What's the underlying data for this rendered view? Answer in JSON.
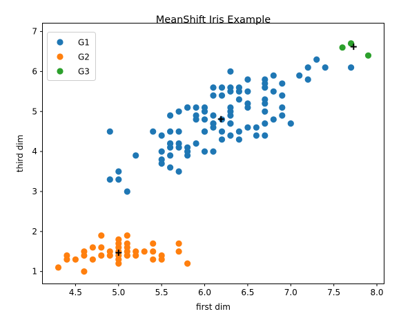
{
  "chart_data": {
    "type": "scatter",
    "title": "MeanShift Iris Example",
    "xlabel": "first dim",
    "ylabel": "third dim",
    "xlim": [
      4.12,
      8.08
    ],
    "ylim": [
      0.7,
      7.2
    ],
    "xticks": [
      4.5,
      5.0,
      5.5,
      6.0,
      6.5,
      7.0,
      7.5,
      8.0
    ],
    "xtick_labels": [
      "4.5",
      "5.0",
      "5.5",
      "6.0",
      "6.5",
      "7.0",
      "7.5",
      "8.0"
    ],
    "yticks": [
      1,
      2,
      3,
      4,
      5,
      6,
      7
    ],
    "ytick_labels": [
      "1",
      "2",
      "3",
      "4",
      "5",
      "6",
      "7"
    ],
    "grid": false,
    "legend_position": "top-left",
    "series": [
      {
        "name": "G1",
        "color": "#1f77b4",
        "points": [
          [
            7.0,
            4.7
          ],
          [
            6.4,
            4.5
          ],
          [
            6.9,
            4.9
          ],
          [
            5.5,
            4.0
          ],
          [
            6.5,
            4.6
          ],
          [
            5.7,
            4.5
          ],
          [
            6.3,
            4.7
          ],
          [
            4.9,
            3.3
          ],
          [
            6.6,
            4.6
          ],
          [
            5.2,
            3.9
          ],
          [
            5.0,
            3.5
          ],
          [
            5.9,
            4.2
          ],
          [
            6.0,
            4.0
          ],
          [
            6.1,
            4.7
          ],
          [
            5.6,
            3.6
          ],
          [
            6.7,
            4.4
          ],
          [
            5.6,
            4.5
          ],
          [
            5.8,
            4.1
          ],
          [
            6.2,
            4.5
          ],
          [
            5.6,
            3.9
          ],
          [
            5.9,
            4.8
          ],
          [
            6.1,
            4.0
          ],
          [
            6.3,
            4.9
          ],
          [
            6.1,
            4.7
          ],
          [
            6.4,
            4.3
          ],
          [
            6.6,
            4.4
          ],
          [
            6.8,
            4.8
          ],
          [
            6.7,
            5.0
          ],
          [
            6.0,
            4.5
          ],
          [
            5.7,
            3.5
          ],
          [
            5.5,
            3.8
          ],
          [
            5.5,
            3.7
          ],
          [
            5.8,
            3.9
          ],
          [
            6.0,
            5.1
          ],
          [
            5.4,
            4.5
          ],
          [
            6.0,
            4.5
          ],
          [
            6.7,
            4.7
          ],
          [
            6.3,
            4.4
          ],
          [
            5.6,
            4.1
          ],
          [
            5.5,
            4.4
          ],
          [
            6.1,
            4.6
          ],
          [
            5.8,
            4.0
          ],
          [
            5.0,
            3.3
          ],
          [
            5.6,
            4.2
          ],
          [
            5.7,
            4.2
          ],
          [
            6.2,
            4.3
          ],
          [
            5.1,
            3.0
          ],
          [
            5.7,
            4.1
          ],
          [
            6.3,
            6.0
          ],
          [
            5.8,
            5.1
          ],
          [
            7.1,
            5.9
          ],
          [
            6.3,
            5.6
          ],
          [
            6.5,
            5.8
          ],
          [
            4.9,
            4.5
          ],
          [
            7.3,
            6.3
          ],
          [
            6.7,
            5.8
          ],
          [
            7.2,
            6.1
          ],
          [
            6.5,
            5.1
          ],
          [
            6.4,
            5.3
          ],
          [
            6.8,
            5.5
          ],
          [
            5.7,
            5.0
          ],
          [
            6.4,
            5.5
          ],
          [
            6.5,
            5.5
          ],
          [
            6.0,
            4.8
          ],
          [
            6.9,
            5.7
          ],
          [
            5.6,
            4.9
          ],
          [
            6.2,
            4.8
          ],
          [
            6.1,
            4.9
          ],
          [
            6.4,
            5.6
          ],
          [
            7.2,
            5.8
          ],
          [
            7.4,
            6.1
          ],
          [
            6.1,
            5.6
          ],
          [
            6.3,
            5.1
          ],
          [
            6.9,
            5.4
          ],
          [
            6.7,
            5.6
          ],
          [
            6.9,
            5.1
          ],
          [
            6.8,
            5.9
          ],
          [
            6.7,
            5.7
          ],
          [
            6.7,
            5.2
          ],
          [
            6.5,
            5.2
          ],
          [
            6.2,
            5.4
          ],
          [
            5.9,
            5.1
          ],
          [
            7.7,
            6.1
          ],
          [
            6.3,
            5.0
          ],
          [
            6.1,
            5.4
          ],
          [
            5.8,
            5.1
          ],
          [
            6.3,
            5.5
          ],
          [
            5.9,
            4.9
          ],
          [
            6.0,
            5.0
          ],
          [
            6.2,
            5.6
          ],
          [
            6.3,
            4.7
          ],
          [
            6.7,
            5.3
          ],
          [
            5.6,
            4.2
          ]
        ]
      },
      {
        "name": "G2",
        "color": "#ff7f0e",
        "points": [
          [
            5.1,
            1.4
          ],
          [
            4.9,
            1.4
          ],
          [
            4.7,
            1.3
          ],
          [
            4.6,
            1.5
          ],
          [
            5.0,
            1.4
          ],
          [
            5.4,
            1.7
          ],
          [
            4.6,
            1.4
          ],
          [
            5.0,
            1.5
          ],
          [
            4.4,
            1.4
          ],
          [
            4.9,
            1.5
          ],
          [
            5.4,
            1.5
          ],
          [
            4.8,
            1.6
          ],
          [
            4.8,
            1.4
          ],
          [
            4.3,
            1.1
          ],
          [
            5.8,
            1.2
          ],
          [
            5.7,
            1.5
          ],
          [
            5.4,
            1.3
          ],
          [
            5.1,
            1.4
          ],
          [
            5.7,
            1.7
          ],
          [
            5.1,
            1.5
          ],
          [
            5.1,
            1.7
          ],
          [
            4.6,
            1.0
          ],
          [
            5.1,
            1.9
          ],
          [
            4.8,
            1.9
          ],
          [
            5.0,
            1.6
          ],
          [
            5.2,
            1.5
          ],
          [
            5.2,
            1.4
          ],
          [
            4.7,
            1.6
          ],
          [
            5.5,
            1.4
          ],
          [
            5.5,
            1.3
          ],
          [
            4.5,
            1.3
          ],
          [
            4.4,
            1.3
          ],
          [
            5.0,
            1.2
          ],
          [
            5.3,
            1.5
          ],
          [
            5.0,
            1.3
          ],
          [
            5.1,
            1.6
          ],
          [
            5.0,
            1.7
          ],
          [
            5.0,
            1.8
          ]
        ]
      },
      {
        "name": "G3",
        "color": "#2ca02c",
        "points": [
          [
            7.6,
            6.6
          ],
          [
            7.7,
            6.7
          ],
          [
            7.9,
            6.4
          ],
          [
            7.7,
            6.7
          ]
        ]
      }
    ],
    "centers": [
      [
        6.19,
        4.81
      ],
      [
        5.0,
        1.47
      ],
      [
        7.73,
        6.62
      ]
    ],
    "center_marker": "+",
    "center_color": "#000000"
  }
}
